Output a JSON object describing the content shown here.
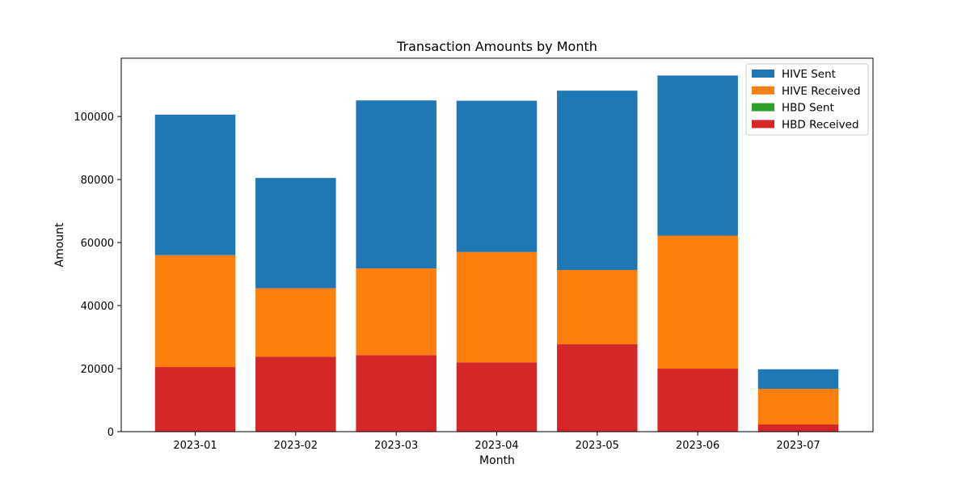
{
  "chart_data": {
    "type": "bar",
    "stacked": true,
    "title": "Transaction Amounts by Month",
    "xlabel": "Month",
    "ylabel": "Amount",
    "categories": [
      "2023-01",
      "2023-02",
      "2023-03",
      "2023-04",
      "2023-05",
      "2023-06",
      "2023-07"
    ],
    "series": [
      {
        "name": "HBD Received",
        "color": "#d62728",
        "values": [
          20500,
          23800,
          24300,
          22000,
          27700,
          20000,
          2300
        ]
      },
      {
        "name": "HBD Sent",
        "color": "#2ca02c",
        "values": [
          0,
          0,
          0,
          0,
          0,
          0,
          0
        ]
      },
      {
        "name": "HIVE Received",
        "color": "#ff7f0e",
        "values": [
          35500,
          21700,
          27500,
          35000,
          23600,
          42200,
          11300
        ]
      },
      {
        "name": "HIVE Sent",
        "color": "#1f77b4",
        "values": [
          44600,
          35000,
          53300,
          48000,
          56900,
          50800,
          6200
        ]
      }
    ],
    "legend_order": [
      "HIVE Sent",
      "HIVE Received",
      "HBD Sent",
      "HBD Received"
    ],
    "legend_position": "top-right",
    "ylim": [
      0,
      118500
    ],
    "yticks": [
      0,
      20000,
      40000,
      60000,
      80000,
      100000
    ],
    "grid": false
  }
}
